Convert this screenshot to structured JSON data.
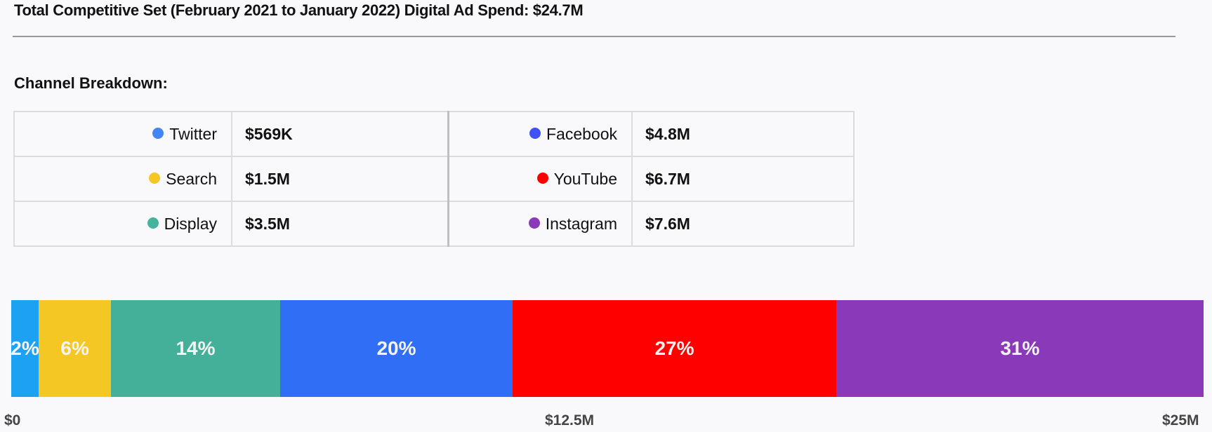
{
  "header": {
    "title": "Total Competitive Set (February 2021 to January 2022) Digital Ad Spend: $24.7M",
    "subtitle": "Channel Breakdown:"
  },
  "legend": {
    "left": [
      {
        "label": "Twitter",
        "value": "$569K",
        "color": "#4285f4"
      },
      {
        "label": "Search",
        "value": "$1.5M",
        "color": "#f4c724"
      },
      {
        "label": "Display",
        "value": "$3.5M",
        "color": "#45b39d"
      }
    ],
    "right": [
      {
        "label": "Facebook",
        "value": "$4.8M",
        "color": "#3f51f5"
      },
      {
        "label": "YouTube",
        "value": "$6.7M",
        "color": "#ff0000"
      },
      {
        "label": "Instagram",
        "value": "$7.6M",
        "color": "#8a3ab9"
      }
    ]
  },
  "chart_data": {
    "type": "bar",
    "orientation": "horizontal-stacked",
    "title": "Total Competitive Set (February 2021 to January 2022) Digital Ad Spend: $24.7M",
    "total": 24.7,
    "unit": "$M",
    "xlim": [
      0,
      25
    ],
    "x_ticks": [
      "$0",
      "$12.5M",
      "$25M"
    ],
    "categories": [
      "Twitter",
      "Search",
      "Display",
      "Facebook",
      "YouTube",
      "Instagram"
    ],
    "values": [
      0.569,
      1.5,
      3.5,
      4.8,
      6.7,
      7.6
    ],
    "percent_labels": [
      "2%",
      "6%",
      "14%",
      "20%",
      "27%",
      "31%"
    ],
    "colors": [
      "#1da1f2",
      "#f4c724",
      "#45b09a",
      "#2f6ef5",
      "#ff0000",
      "#8a3ab9"
    ]
  }
}
